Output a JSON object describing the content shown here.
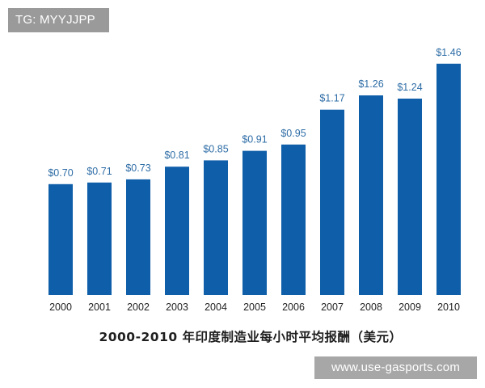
{
  "watermarks": {
    "top": "TG: MYYJJPP",
    "bottom": "www.use-gasports.com"
  },
  "chart_data": {
    "type": "bar",
    "title": "2000-2010 年印度制造业每小时平均报酬（美元）",
    "xlabel": "",
    "ylabel": "",
    "categories": [
      "2000",
      "2001",
      "2002",
      "2003",
      "2004",
      "2005",
      "2006",
      "2007",
      "2008",
      "2009",
      "2010"
    ],
    "values": [
      0.7,
      0.71,
      0.73,
      0.81,
      0.85,
      0.91,
      0.95,
      1.17,
      1.26,
      1.24,
      1.46
    ],
    "value_labels": [
      "$0.70",
      "$0.71",
      "$0.73",
      "$0.81",
      "$0.85",
      "$0.91",
      "$0.95",
      "$1.17",
      "$1.26",
      "$1.24",
      "$1.46"
    ],
    "bar_color": "#0e5ea9",
    "label_color": "#2e6da6",
    "grid": false,
    "legend": "none"
  }
}
